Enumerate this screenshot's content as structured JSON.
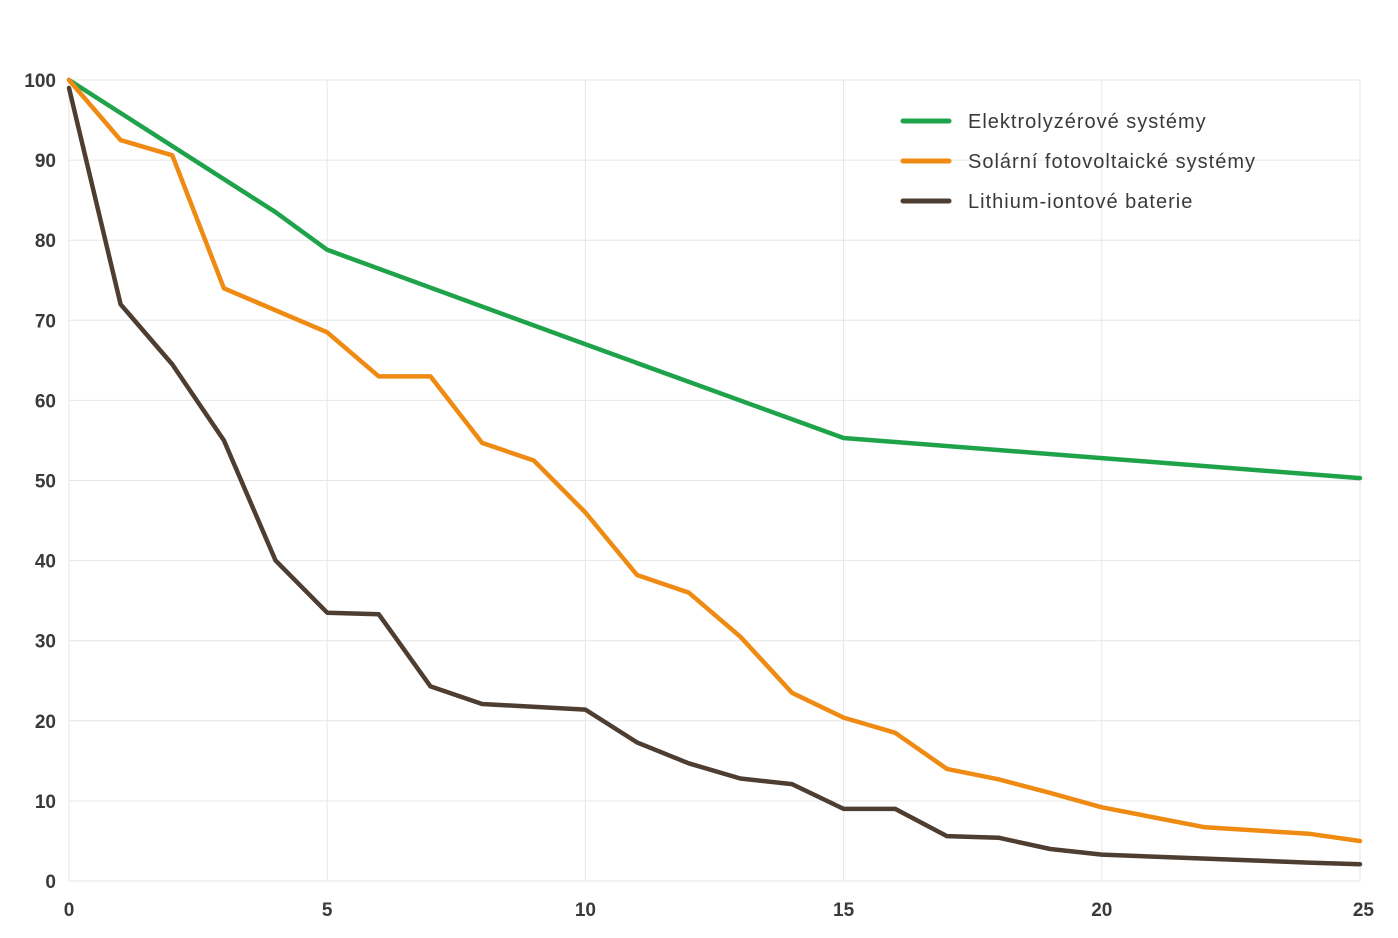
{
  "chart_data": {
    "type": "line",
    "title": "",
    "xlabel": "",
    "ylabel": "",
    "xlim": [
      0,
      25
    ],
    "ylim": [
      0,
      100
    ],
    "x_ticks": [
      "0",
      "5",
      "10",
      "15",
      "20",
      "25"
    ],
    "y_ticks": [
      "0",
      "10",
      "20",
      "30",
      "40",
      "50",
      "60",
      "70",
      "80",
      "90",
      "100"
    ],
    "grid": true,
    "legend_position": "top-right",
    "series": [
      {
        "name": "Elektrolyzérové systémy",
        "color": "#1fa34a",
        "points": [
          [
            0,
            100
          ],
          [
            4,
            83.5
          ],
          [
            5,
            78.8
          ],
          [
            10,
            67
          ],
          [
            15,
            55.3
          ],
          [
            20,
            52.8
          ],
          [
            25,
            50.3
          ]
        ]
      },
      {
        "name": "Solární fotovoltaické systémy",
        "color": "#ef8a12",
        "points": [
          [
            0,
            100
          ],
          [
            1,
            92.5
          ],
          [
            2,
            90.6
          ],
          [
            3,
            74
          ],
          [
            5,
            68.5
          ],
          [
            6,
            63
          ],
          [
            7,
            63
          ],
          [
            8,
            54.7
          ],
          [
            9,
            52.5
          ],
          [
            10,
            46
          ],
          [
            11,
            38.2
          ],
          [
            12,
            36
          ],
          [
            13,
            30.5
          ],
          [
            14,
            23.5
          ],
          [
            15,
            20.4
          ],
          [
            16,
            18.5
          ],
          [
            17,
            14
          ],
          [
            18,
            12.7
          ],
          [
            19,
            11
          ],
          [
            20,
            9.2
          ],
          [
            22,
            6.7
          ],
          [
            24,
            5.9
          ],
          [
            25,
            5
          ]
        ]
      },
      {
        "name": "Lithium-iontové baterie",
        "color": "#4e3d31",
        "points": [
          [
            0,
            99
          ],
          [
            1,
            72
          ],
          [
            2,
            64.5
          ],
          [
            3,
            55
          ],
          [
            4,
            40
          ],
          [
            5,
            33.5
          ],
          [
            6,
            33.3
          ],
          [
            7,
            24.3
          ],
          [
            8,
            22.1
          ],
          [
            10,
            21.4
          ],
          [
            11,
            17.3
          ],
          [
            12,
            14.7
          ],
          [
            13,
            12.8
          ],
          [
            14,
            12.1
          ],
          [
            15,
            9
          ],
          [
            16,
            9
          ],
          [
            17,
            5.6
          ],
          [
            18,
            5.4
          ],
          [
            19,
            4
          ],
          [
            20,
            3.3
          ],
          [
            22,
            2.8
          ],
          [
            24,
            2.3
          ],
          [
            25,
            2.1
          ]
        ]
      }
    ]
  }
}
